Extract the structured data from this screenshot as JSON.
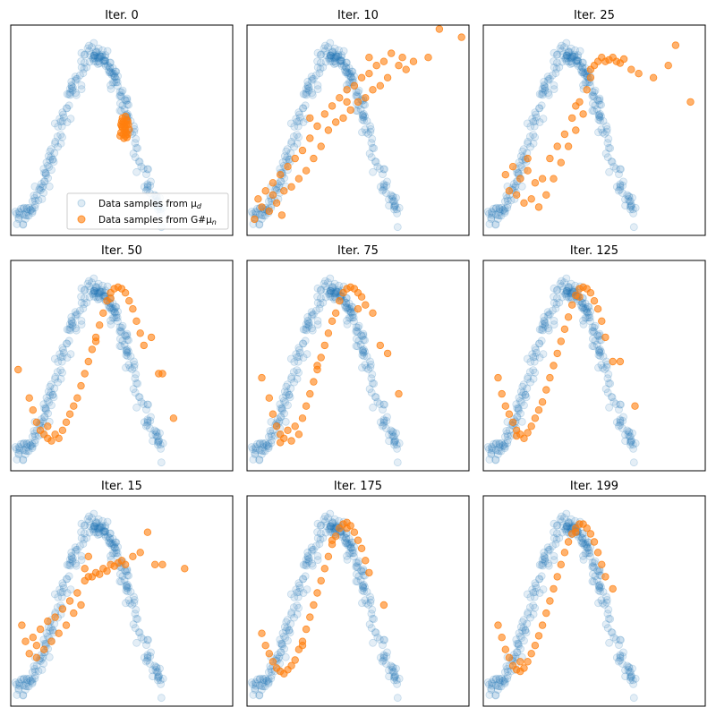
{
  "colors": {
    "data": "#1f77b4",
    "generated": "#ff7f0e"
  },
  "legend": {
    "placement": "lower-right of first panel",
    "data_label": "Data samples from μ",
    "data_sub": "d",
    "gen_label": "Data samples from G#μ",
    "gen_sub": "n"
  },
  "chart_data": [
    {
      "type": "scatter",
      "title": "Iter. 0",
      "generated": [
        [
          0.45,
          0.1
        ],
        [
          0.47,
          0.15
        ],
        [
          0.49,
          0.05
        ],
        [
          0.51,
          0.12
        ],
        [
          0.53,
          0.0
        ],
        [
          0.44,
          0.02
        ],
        [
          0.48,
          -0.05
        ],
        [
          0.5,
          0.08
        ],
        [
          0.52,
          0.18
        ],
        [
          0.46,
          0.2
        ],
        [
          0.55,
          0.06
        ],
        [
          0.43,
          -0.02
        ],
        [
          0.5,
          0.22
        ],
        [
          0.47,
          0.0
        ],
        [
          0.52,
          -0.04
        ],
        [
          0.49,
          0.14
        ],
        [
          0.54,
          0.12
        ],
        [
          0.45,
          0.16
        ],
        [
          0.51,
          0.02
        ],
        [
          0.48,
          0.1
        ],
        [
          0.53,
          0.16
        ],
        [
          0.46,
          0.08
        ],
        [
          0.5,
          -0.02
        ],
        [
          0.44,
          0.12
        ]
      ]
    },
    {
      "type": "scatter",
      "title": "Iter. 10",
      "generated": [
        [
          -0.95,
          -1.05
        ],
        [
          -0.9,
          -0.8
        ],
        [
          -0.85,
          -0.9
        ],
        [
          -0.8,
          -0.7
        ],
        [
          -0.75,
          -0.95
        ],
        [
          -0.7,
          -0.6
        ],
        [
          -0.65,
          -0.85
        ],
        [
          -0.6,
          -0.5
        ],
        [
          -0.58,
          -1.0
        ],
        [
          -0.55,
          -0.7
        ],
        [
          -0.5,
          -0.4
        ],
        [
          -0.45,
          -0.65
        ],
        [
          -0.4,
          -0.3
        ],
        [
          -0.35,
          -0.55
        ],
        [
          -0.3,
          -0.2
        ],
        [
          -0.25,
          -0.45
        ],
        [
          -0.2,
          -0.05
        ],
        [
          -0.15,
          -0.3
        ],
        [
          -0.1,
          0.1
        ],
        [
          -0.05,
          -0.15
        ],
        [
          0.0,
          0.25
        ],
        [
          0.05,
          0.05
        ],
        [
          0.1,
          0.35
        ],
        [
          0.15,
          0.15
        ],
        [
          0.2,
          0.45
        ],
        [
          0.25,
          0.2
        ],
        [
          0.3,
          0.55
        ],
        [
          0.35,
          0.3
        ],
        [
          0.4,
          0.6
        ],
        [
          0.45,
          0.4
        ],
        [
          0.5,
          0.7
        ],
        [
          0.55,
          0.45
        ],
        [
          0.6,
          0.75
        ],
        [
          0.65,
          0.55
        ],
        [
          0.7,
          0.85
        ],
        [
          0.75,
          0.6
        ],
        [
          0.8,
          0.9
        ],
        [
          0.85,
          0.7
        ],
        [
          0.9,
          1.0
        ],
        [
          1.0,
          0.85
        ],
        [
          1.05,
          0.95
        ],
        [
          1.1,
          0.8
        ],
        [
          1.2,
          0.9
        ],
        [
          1.4,
          0.95
        ],
        [
          1.55,
          1.3
        ],
        [
          1.85,
          1.2
        ],
        [
          -0.7,
          -0.75
        ],
        [
          -0.2,
          0.2
        ],
        [
          0.3,
          0.4
        ],
        [
          0.6,
          0.95
        ]
      ]
    },
    {
      "type": "scatter",
      "title": "Iter. 25",
      "generated": [
        [
          -0.75,
          -0.5
        ],
        [
          -0.7,
          -0.7
        ],
        [
          -0.65,
          -0.4
        ],
        [
          -0.6,
          -0.75
        ],
        [
          -0.55,
          -0.55
        ],
        [
          -0.5,
          -0.85
        ],
        [
          -0.45,
          -0.45
        ],
        [
          -0.4,
          -0.8
        ],
        [
          -0.35,
          -0.6
        ],
        [
          -0.3,
          -0.9
        ],
        [
          -0.25,
          -0.55
        ],
        [
          -0.2,
          -0.75
        ],
        [
          -0.15,
          -0.3
        ],
        [
          -0.1,
          -0.55
        ],
        [
          -0.05,
          -0.15
        ],
        [
          0.0,
          -0.35
        ],
        [
          0.05,
          0.0
        ],
        [
          0.1,
          -0.15
        ],
        [
          0.15,
          0.2
        ],
        [
          0.2,
          0.05
        ],
        [
          0.25,
          0.4
        ],
        [
          0.3,
          0.25
        ],
        [
          0.35,
          0.55
        ],
        [
          0.4,
          0.7
        ],
        [
          0.45,
          0.85
        ],
        [
          0.5,
          0.9
        ],
        [
          0.55,
          0.95
        ],
        [
          0.6,
          0.9
        ],
        [
          0.65,
          0.92
        ],
        [
          0.7,
          0.95
        ],
        [
          0.75,
          0.9
        ],
        [
          0.8,
          0.88
        ],
        [
          0.85,
          0.93
        ],
        [
          0.95,
          0.8
        ],
        [
          1.05,
          0.75
        ],
        [
          1.25,
          0.7
        ],
        [
          1.45,
          0.85
        ],
        [
          1.55,
          1.1
        ],
        [
          1.75,
          0.4
        ],
        [
          0.2,
          0.35
        ],
        [
          0.4,
          0.8
        ],
        [
          -0.45,
          -0.3
        ]
      ]
    },
    {
      "type": "scatter",
      "title": "Iter. 50",
      "generated": [
        [
          -0.95,
          0.0
        ],
        [
          -0.8,
          -0.35
        ],
        [
          -0.75,
          -0.5
        ],
        [
          -0.7,
          -0.65
        ],
        [
          -0.65,
          -0.75
        ],
        [
          -0.6,
          -0.8
        ],
        [
          -0.55,
          -0.85
        ],
        [
          -0.5,
          -0.88
        ],
        [
          -0.45,
          -0.8
        ],
        [
          -0.4,
          -0.85
        ],
        [
          -0.35,
          -0.75
        ],
        [
          -0.3,
          -0.65
        ],
        [
          -0.25,
          -0.55
        ],
        [
          -0.2,
          -0.45
        ],
        [
          -0.15,
          -0.35
        ],
        [
          -0.1,
          -0.2
        ],
        [
          -0.05,
          -0.05
        ],
        [
          0.0,
          0.1
        ],
        [
          0.05,
          0.25
        ],
        [
          0.1,
          0.4
        ],
        [
          0.15,
          0.55
        ],
        [
          0.2,
          0.7
        ],
        [
          0.25,
          0.85
        ],
        [
          0.3,
          0.95
        ],
        [
          0.35,
          1.0
        ],
        [
          0.4,
          1.02
        ],
        [
          0.45,
          1.0
        ],
        [
          0.5,
          0.95
        ],
        [
          0.55,
          0.85
        ],
        [
          0.6,
          0.75
        ],
        [
          0.65,
          0.6
        ],
        [
          0.7,
          0.45
        ],
        [
          0.75,
          0.3
        ],
        [
          0.85,
          0.4
        ],
        [
          0.95,
          -0.05
        ],
        [
          1.0,
          -0.05
        ],
        [
          1.15,
          -0.6
        ],
        [
          -0.55,
          -0.7
        ],
        [
          0.3,
          0.88
        ],
        [
          0.1,
          0.35
        ]
      ]
    },
    {
      "type": "scatter",
      "title": "Iter. 75",
      "generated": [
        [
          -0.85,
          -0.1
        ],
        [
          -0.75,
          -0.35
        ],
        [
          -0.7,
          -0.55
        ],
        [
          -0.65,
          -0.7
        ],
        [
          -0.6,
          -0.8
        ],
        [
          -0.55,
          -0.85
        ],
        [
          -0.5,
          -0.75
        ],
        [
          -0.45,
          -0.88
        ],
        [
          -0.4,
          -0.7
        ],
        [
          -0.35,
          -0.8
        ],
        [
          -0.3,
          -0.6
        ],
        [
          -0.25,
          -0.45
        ],
        [
          -0.2,
          -0.3
        ],
        [
          -0.15,
          -0.15
        ],
        [
          -0.1,
          0.0
        ],
        [
          -0.05,
          0.15
        ],
        [
          0.0,
          0.3
        ],
        [
          0.05,
          0.45
        ],
        [
          0.1,
          0.6
        ],
        [
          0.15,
          0.7
        ],
        [
          0.2,
          0.85
        ],
        [
          0.25,
          0.95
        ],
        [
          0.3,
          1.0
        ],
        [
          0.35,
          1.02
        ],
        [
          0.4,
          1.0
        ],
        [
          0.45,
          0.95
        ],
        [
          0.5,
          0.9
        ],
        [
          0.55,
          0.8
        ],
        [
          0.65,
          0.7
        ],
        [
          0.75,
          0.3
        ],
        [
          0.85,
          0.2
        ],
        [
          1.0,
          -0.3
        ],
        [
          -0.6,
          -0.9
        ],
        [
          -0.1,
          0.05
        ],
        [
          0.45,
          0.75
        ]
      ]
    },
    {
      "type": "scatter",
      "title": "Iter. 125",
      "generated": [
        [
          -0.85,
          -0.1
        ],
        [
          -0.8,
          -0.3
        ],
        [
          -0.75,
          -0.45
        ],
        [
          -0.7,
          -0.55
        ],
        [
          -0.65,
          -0.65
        ],
        [
          -0.6,
          -0.75
        ],
        [
          -0.55,
          -0.8
        ],
        [
          -0.5,
          -0.85
        ],
        [
          -0.45,
          -0.78
        ],
        [
          -0.4,
          -0.7
        ],
        [
          -0.35,
          -0.6
        ],
        [
          -0.3,
          -0.5
        ],
        [
          -0.25,
          -0.4
        ],
        [
          -0.2,
          -0.25
        ],
        [
          -0.15,
          -0.1
        ],
        [
          -0.1,
          0.05
        ],
        [
          -0.05,
          0.2
        ],
        [
          0.0,
          0.35
        ],
        [
          0.05,
          0.5
        ],
        [
          0.1,
          0.65
        ],
        [
          0.15,
          0.8
        ],
        [
          0.2,
          0.92
        ],
        [
          0.25,
          1.0
        ],
        [
          0.3,
          1.02
        ],
        [
          0.35,
          1.0
        ],
        [
          0.4,
          0.95
        ],
        [
          0.45,
          0.85
        ],
        [
          0.5,
          0.75
        ],
        [
          0.55,
          0.6
        ],
        [
          0.6,
          0.4
        ],
        [
          0.7,
          0.1
        ],
        [
          0.8,
          0.1
        ],
        [
          1.0,
          -0.45
        ],
        [
          -0.6,
          -0.82
        ],
        [
          0.25,
          0.9
        ]
      ]
    },
    {
      "type": "scatter",
      "title": "Iter. 15",
      "generated": [
        [
          -0.9,
          -0.25
        ],
        [
          -0.85,
          -0.45
        ],
        [
          -0.8,
          -0.6
        ],
        [
          -0.75,
          -0.4
        ],
        [
          -0.7,
          -0.65
        ],
        [
          -0.65,
          -0.3
        ],
        [
          -0.6,
          -0.55
        ],
        [
          -0.55,
          -0.2
        ],
        [
          -0.5,
          -0.45
        ],
        [
          -0.45,
          -0.15
        ],
        [
          -0.4,
          -0.35
        ],
        [
          -0.35,
          -0.05
        ],
        [
          -0.3,
          -0.25
        ],
        [
          -0.25,
          0.05
        ],
        [
          -0.2,
          -0.1
        ],
        [
          -0.15,
          0.15
        ],
        [
          -0.1,
          0.0
        ],
        [
          -0.05,
          0.3
        ],
        [
          0.0,
          0.35
        ],
        [
          0.05,
          0.35
        ],
        [
          0.1,
          0.4
        ],
        [
          0.15,
          0.38
        ],
        [
          0.2,
          0.45
        ],
        [
          0.25,
          0.42
        ],
        [
          0.3,
          0.5
        ],
        [
          0.35,
          0.48
        ],
        [
          0.4,
          0.52
        ],
        [
          0.45,
          0.55
        ],
        [
          0.5,
          0.5
        ],
        [
          0.6,
          0.6
        ],
        [
          0.7,
          0.65
        ],
        [
          0.8,
          0.9
        ],
        [
          0.9,
          0.5
        ],
        [
          1.0,
          0.5
        ],
        [
          1.3,
          0.45
        ],
        [
          -0.05,
          0.45
        ],
        [
          0.0,
          0.6
        ],
        [
          -0.7,
          -0.5
        ]
      ]
    },
    {
      "type": "scatter",
      "title": "Iter. 175",
      "generated": [
        [
          -0.85,
          -0.35
        ],
        [
          -0.8,
          -0.5
        ],
        [
          -0.75,
          -0.6
        ],
        [
          -0.7,
          -0.7
        ],
        [
          -0.65,
          -0.78
        ],
        [
          -0.6,
          -0.82
        ],
        [
          -0.55,
          -0.85
        ],
        [
          -0.5,
          -0.8
        ],
        [
          -0.45,
          -0.75
        ],
        [
          -0.4,
          -0.68
        ],
        [
          -0.35,
          -0.55
        ],
        [
          -0.3,
          -0.45
        ],
        [
          -0.25,
          -0.3
        ],
        [
          -0.2,
          -0.15
        ],
        [
          -0.15,
          0.0
        ],
        [
          -0.1,
          0.15
        ],
        [
          -0.05,
          0.3
        ],
        [
          0.0,
          0.45
        ],
        [
          0.05,
          0.6
        ],
        [
          0.1,
          0.75
        ],
        [
          0.15,
          0.85
        ],
        [
          0.2,
          0.95
        ],
        [
          0.25,
          1.0
        ],
        [
          0.3,
          1.02
        ],
        [
          0.35,
          0.98
        ],
        [
          0.4,
          0.9
        ],
        [
          0.45,
          0.8
        ],
        [
          0.5,
          0.7
        ],
        [
          0.55,
          0.55
        ],
        [
          0.6,
          0.4
        ],
        [
          0.8,
          0.0
        ],
        [
          0.1,
          0.8
        ],
        [
          -0.3,
          -0.5
        ],
        [
          0.3,
          0.95
        ]
      ]
    },
    {
      "type": "scatter",
      "title": "Iter. 199",
      "generated": [
        [
          -0.85,
          -0.25
        ],
        [
          -0.8,
          -0.4
        ],
        [
          -0.75,
          -0.55
        ],
        [
          -0.7,
          -0.65
        ],
        [
          -0.65,
          -0.75
        ],
        [
          -0.6,
          -0.8
        ],
        [
          -0.55,
          -0.82
        ],
        [
          -0.5,
          -0.78
        ],
        [
          -0.45,
          -0.7
        ],
        [
          -0.4,
          -0.6
        ],
        [
          -0.35,
          -0.5
        ],
        [
          -0.3,
          -0.38
        ],
        [
          -0.25,
          -0.25
        ],
        [
          -0.2,
          -0.1
        ],
        [
          -0.15,
          0.05
        ],
        [
          -0.1,
          0.2
        ],
        [
          -0.05,
          0.35
        ],
        [
          0.0,
          0.5
        ],
        [
          0.05,
          0.65
        ],
        [
          0.1,
          0.78
        ],
        [
          0.15,
          0.88
        ],
        [
          0.2,
          0.95
        ],
        [
          0.25,
          1.0
        ],
        [
          0.3,
          1.0
        ],
        [
          0.35,
          0.95
        ],
        [
          0.4,
          0.88
        ],
        [
          0.45,
          0.78
        ],
        [
          0.5,
          0.65
        ],
        [
          0.55,
          0.5
        ],
        [
          0.6,
          0.35
        ],
        [
          0.7,
          0.2
        ],
        [
          -0.55,
          -0.7
        ],
        [
          0.2,
          0.9
        ]
      ]
    }
  ]
}
